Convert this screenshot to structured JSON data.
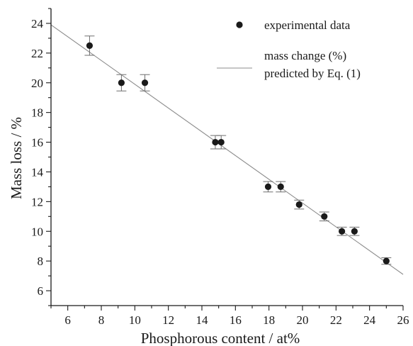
{
  "chart_data": {
    "type": "scatter",
    "xlabel": "Phosphorous content / at%",
    "ylabel": "Mass loss / %",
    "xlim": [
      5,
      26
    ],
    "ylim": [
      5,
      25
    ],
    "xticks": [
      6,
      8,
      10,
      12,
      14,
      16,
      18,
      20,
      22,
      24,
      26
    ],
    "yticks": [
      6,
      8,
      10,
      12,
      14,
      16,
      18,
      20,
      22,
      24
    ],
    "grid": false,
    "legend_position": "top-right",
    "series": [
      {
        "name": "experimental data",
        "kind": "scatter",
        "color": "#1a1a1a",
        "points": [
          {
            "x": 7.3,
            "y": 22.5,
            "err": 0.65
          },
          {
            "x": 9.2,
            "y": 20.0,
            "err": 0.55
          },
          {
            "x": 10.6,
            "y": 20.0,
            "err": 0.55
          },
          {
            "x": 14.8,
            "y": 16.0,
            "err": 0.45
          },
          {
            "x": 15.15,
            "y": 16.0,
            "err": 0.45
          },
          {
            "x": 17.95,
            "y": 13.0,
            "err": 0.35
          },
          {
            "x": 18.7,
            "y": 13.0,
            "err": 0.35
          },
          {
            "x": 19.8,
            "y": 11.8,
            "err": 0.3
          },
          {
            "x": 21.3,
            "y": 11.0,
            "err": 0.3
          },
          {
            "x": 22.35,
            "y": 10.0,
            "err": 0.28
          },
          {
            "x": 23.1,
            "y": 10.0,
            "err": 0.28
          },
          {
            "x": 25.0,
            "y": 8.0,
            "err": 0.22
          }
        ]
      },
      {
        "name": "mass change (%)\npredicted by Eq. (1)",
        "kind": "line",
        "color": "#8c8c8c",
        "points": [
          {
            "x": 5.0,
            "y": 23.9
          },
          {
            "x": 26.0,
            "y": 7.1
          }
        ]
      }
    ]
  }
}
